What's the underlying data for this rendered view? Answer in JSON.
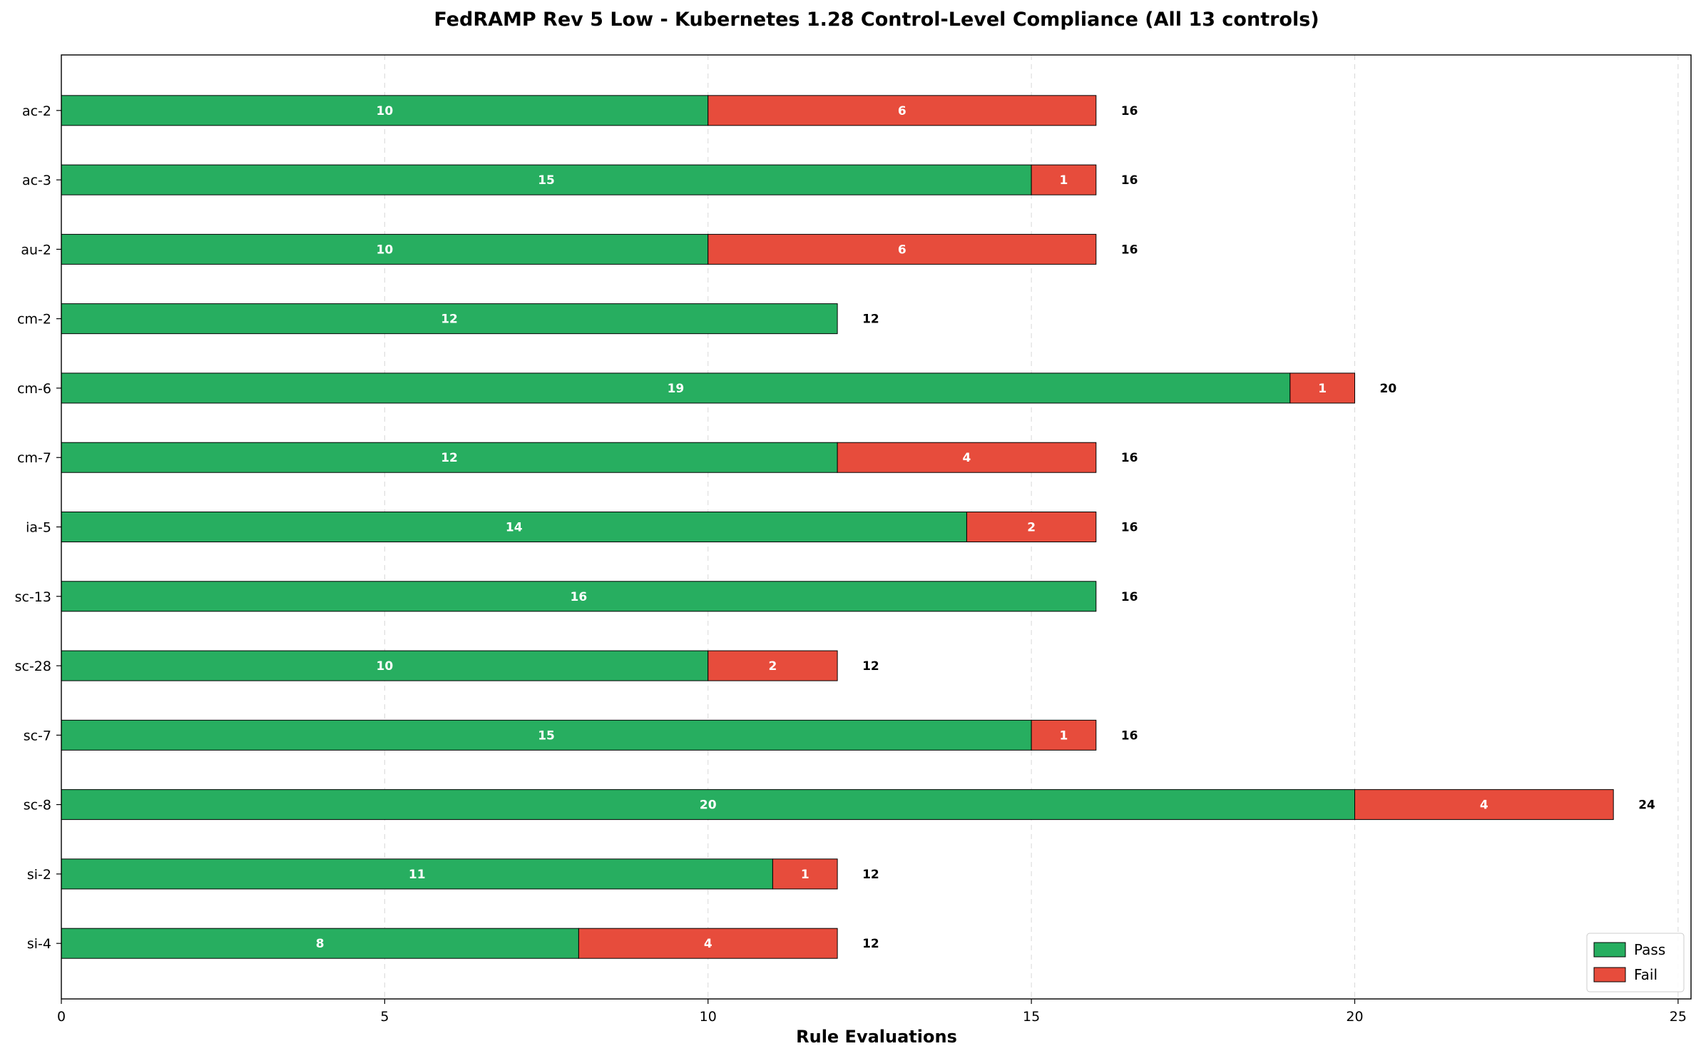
{
  "chart_data": {
    "type": "bar",
    "orientation": "horizontal",
    "stacked": true,
    "title": "FedRAMP Rev 5 Low - Kubernetes 1.28 Control-Level Compliance (All 13 controls)",
    "xlabel": "Rule Evaluations",
    "ylabel": "",
    "xlim": [
      0,
      25.2
    ],
    "xticks": [
      0,
      5,
      10,
      15,
      20,
      25
    ],
    "grid": "vertical dashed",
    "legend_position": "bottom-right",
    "categories": [
      "ac-2",
      "ac-3",
      "au-2",
      "cm-2",
      "cm-6",
      "cm-7",
      "ia-5",
      "sc-13",
      "sc-28",
      "sc-7",
      "sc-8",
      "si-2",
      "si-4"
    ],
    "series": [
      {
        "name": "Pass",
        "color": "#27ae60",
        "values": [
          10,
          15,
          10,
          12,
          19,
          12,
          14,
          16,
          10,
          15,
          20,
          11,
          8
        ]
      },
      {
        "name": "Fail",
        "color": "#e74c3c",
        "values": [
          6,
          1,
          6,
          0,
          1,
          4,
          2,
          0,
          2,
          1,
          4,
          1,
          4
        ]
      }
    ],
    "totals": [
      16,
      16,
      16,
      12,
      20,
      16,
      16,
      16,
      12,
      16,
      24,
      12,
      12
    ]
  }
}
